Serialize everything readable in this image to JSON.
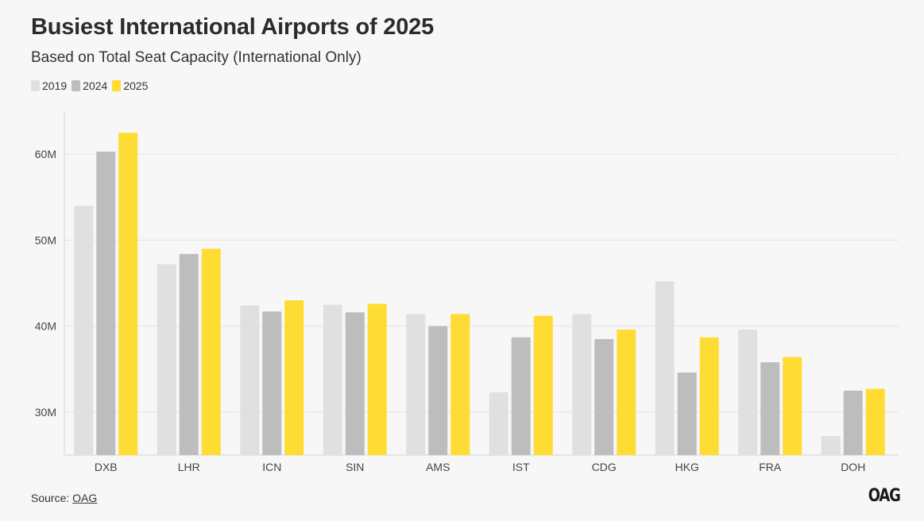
{
  "title": "Busiest International Airports of 2025",
  "subtitle": "Based on Total Seat Capacity (International Only)",
  "legend": [
    {
      "label": "2019",
      "color": "#e0e0e0"
    },
    {
      "label": "2024",
      "color": "#bdbdbd"
    },
    {
      "label": "2025",
      "color": "#ffdc33"
    }
  ],
  "source": {
    "prefix": "Source: ",
    "link": "OAG"
  },
  "logo": "OAG",
  "chart_data": {
    "type": "bar",
    "categories": [
      "DXB",
      "LHR",
      "ICN",
      "SIN",
      "AMS",
      "IST",
      "CDG",
      "HKG",
      "FRA",
      "DOH"
    ],
    "series": [
      {
        "name": "2019",
        "color": "#e0e0e0",
        "values": [
          54.0,
          47.2,
          42.4,
          42.5,
          41.4,
          32.3,
          41.4,
          45.2,
          39.6,
          27.2
        ]
      },
      {
        "name": "2024",
        "color": "#bdbdbd",
        "values": [
          60.3,
          48.4,
          41.7,
          41.6,
          40.0,
          38.7,
          38.5,
          34.6,
          35.8,
          32.5
        ]
      },
      {
        "name": "2025",
        "color": "#ffdc33",
        "values": [
          62.5,
          49.0,
          43.0,
          42.6,
          41.4,
          41.2,
          39.6,
          38.7,
          36.4,
          32.7
        ]
      }
    ],
    "yticks": [
      {
        "value": 30,
        "label": "30M"
      },
      {
        "value": 40,
        "label": "40M"
      },
      {
        "value": 50,
        "label": "50M"
      },
      {
        "value": 60,
        "label": "60M"
      }
    ],
    "ylim": [
      25,
      65
    ],
    "grid": true,
    "legend_position": "top-left",
    "xlabel": "",
    "ylabel": ""
  }
}
